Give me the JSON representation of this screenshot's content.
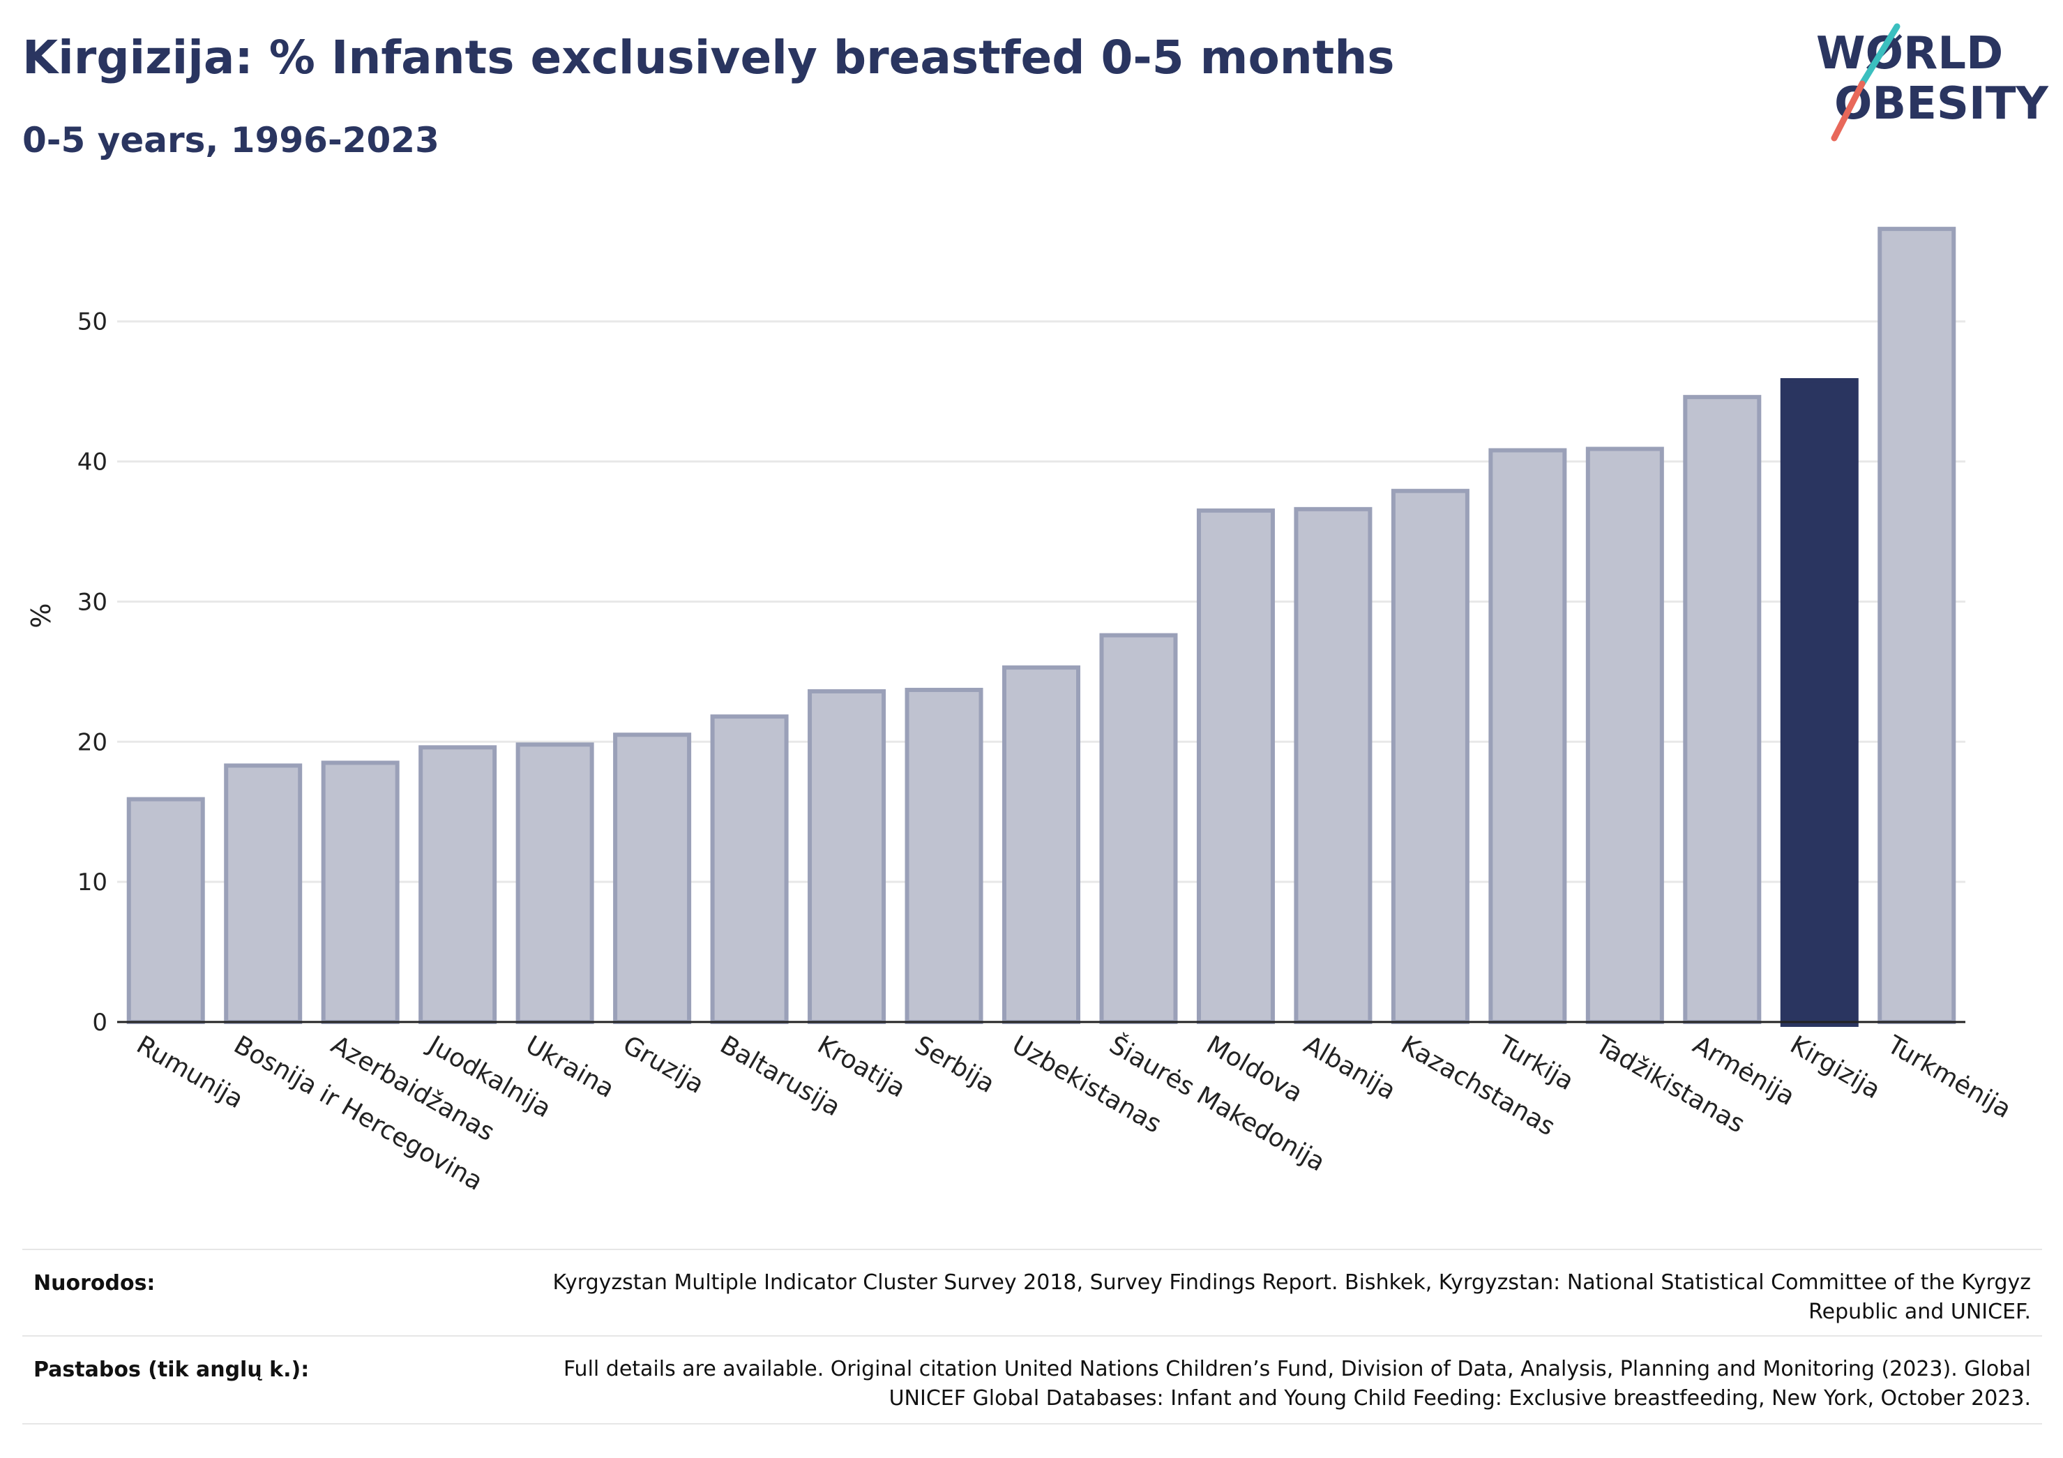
{
  "header": {
    "title": "Kirgizija: % Infants exclusively breastfed 0-5 months",
    "subtitle": "0-5 years, 1996-2023"
  },
  "logo": {
    "line1": "WØRLD",
    "line2": "OBESITY",
    "colors": {
      "text": "#2a3560",
      "slash_teal": "#3bbfbf",
      "slash_coral": "#e8685a"
    }
  },
  "chart_data": {
    "type": "bar",
    "title": "Kirgizija: % Infants exclusively breastfed 0-5 months",
    "subtitle": "0-5 years, 1996-2023",
    "xlabel": "",
    "ylabel": "%",
    "ylim": [
      0,
      58
    ],
    "yticks": [
      0,
      10,
      20,
      30,
      40,
      50
    ],
    "grid": true,
    "categories": [
      "Rumunija",
      "Bosnija ir Hercegovina",
      "Azerbaidžanas",
      "Juodkalnija",
      "Ukraina",
      "Gruzija",
      "Baltarusija",
      "Kroatija",
      "Serbija",
      "Uzbekistanas",
      "Šiaurės Makedonija",
      "Moldova",
      "Albanija",
      "Kazachstanas",
      "Turkija",
      "Tadžikistanas",
      "Armėnija",
      "Kirgizija",
      "Turkmėnija"
    ],
    "values": [
      15.9,
      18.3,
      18.5,
      19.6,
      19.8,
      20.5,
      21.8,
      23.6,
      23.7,
      25.3,
      27.6,
      36.5,
      36.6,
      37.9,
      40.8,
      40.9,
      44.6,
      45.8,
      56.6
    ],
    "highlight": "Kirgizija",
    "colors": {
      "bar": "#bfc2d0",
      "bar_edge": "#9aa0b8",
      "highlight": "#2a3560"
    }
  },
  "footer": {
    "sources_label": "Nuorodos:",
    "sources_text": "Kyrgyzstan Multiple Indicator Cluster Survey 2018, Survey Findings Report. Bishkek, Kyrgyzstan: National Statistical Committee of the Kyrgyz Republic and UNICEF.",
    "notes_label": "Pastabos (tik anglų k.):",
    "notes_text": "Full details are available. Original citation United Nations Children’s Fund, Division of Data, Analysis, Planning and Monitoring (2023). Global UNICEF Global Databases: Infant and Young Child Feeding: Exclusive breastfeeding, New York, October 2023."
  }
}
